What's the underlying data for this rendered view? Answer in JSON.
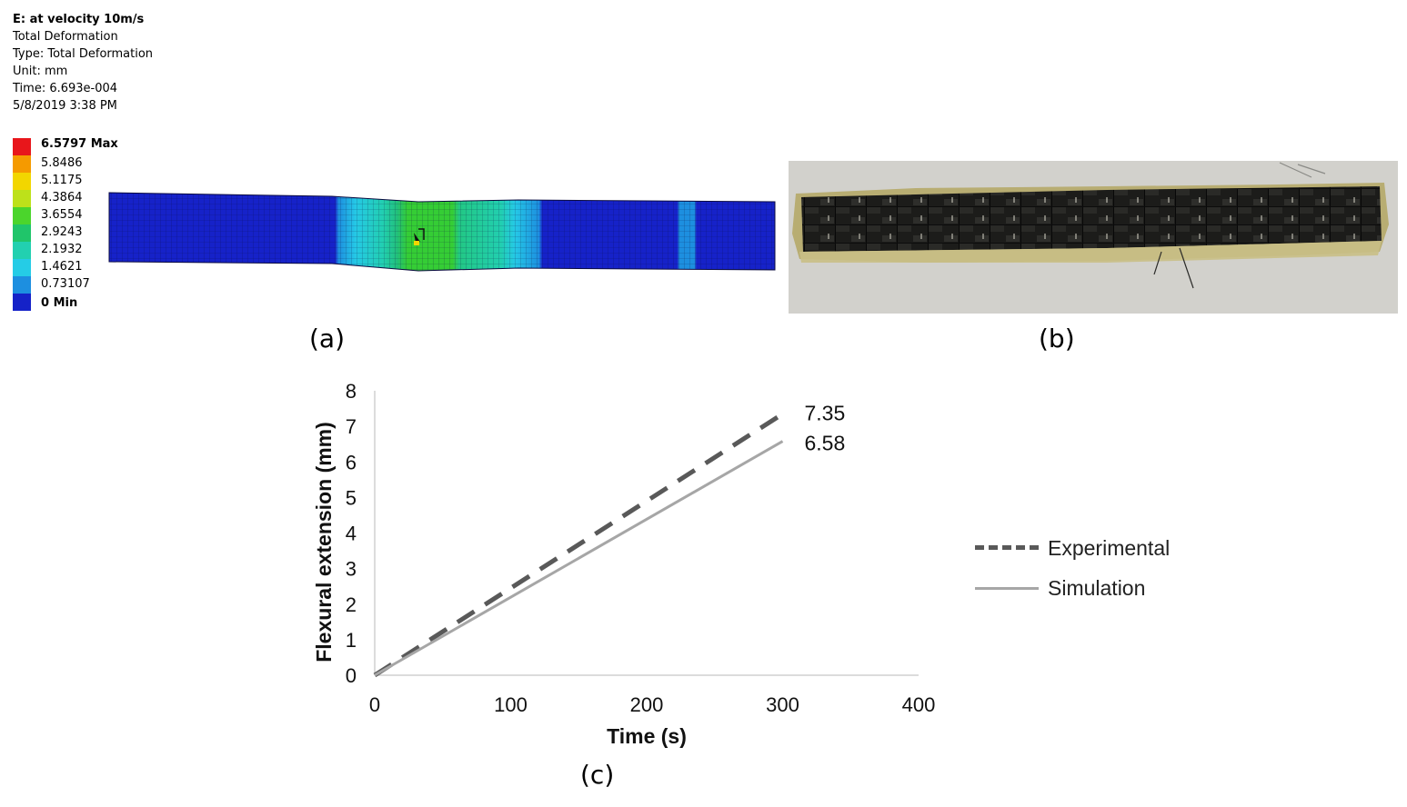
{
  "panel_a": {
    "header": {
      "title": "E: at velocity 10m/s",
      "line2": "Total Deformation",
      "line3": "Type: Total Deformation",
      "line4": "Unit: mm",
      "line5": "Time: 6.693e-004",
      "line6": "5/8/2019 3:38 PM"
    },
    "legend": [
      {
        "label": "6.5797 Max",
        "color": "#e8161b",
        "bold": true
      },
      {
        "label": "5.8486",
        "color": "#f59a00",
        "bold": false
      },
      {
        "label": "5.1175",
        "color": "#f2d600",
        "bold": false
      },
      {
        "label": "4.3864",
        "color": "#bde11a",
        "bold": false
      },
      {
        "label": "3.6554",
        "color": "#4bd52c",
        "bold": false
      },
      {
        "label": "2.9243",
        "color": "#20c56a",
        "bold": false
      },
      {
        "label": "2.1932",
        "color": "#22d0b0",
        "bold": false
      },
      {
        "label": "1.4621",
        "color": "#25cce6",
        "bold": false
      },
      {
        "label": "0.73107",
        "color": "#1d8fe0",
        "bold": false
      },
      {
        "label": "0 Min",
        "color": "#1522c8",
        "bold": true
      }
    ],
    "caption": "(a)"
  },
  "panel_b": {
    "caption": "(b)"
  },
  "panel_c": {
    "caption": "(c)"
  },
  "chart_data": {
    "type": "line",
    "title": "",
    "xlabel": "Time (s)",
    "ylabel": "Flexural extension (mm)",
    "xlim": [
      0,
      400
    ],
    "ylim": [
      0,
      8
    ],
    "xticks": [
      0,
      100,
      200,
      300,
      400
    ],
    "yticks": [
      0,
      1,
      2,
      3,
      4,
      5,
      6,
      7,
      8
    ],
    "grid": false,
    "legend_position": "right",
    "series": [
      {
        "name": "Experimental",
        "x": [
          0,
          300
        ],
        "y": [
          0,
          7.35
        ],
        "style": "dashed",
        "color": "#595959",
        "end_label": "7.35"
      },
      {
        "name": "Simulation",
        "x": [
          0,
          300
        ],
        "y": [
          0,
          6.58
        ],
        "style": "solid",
        "color": "#a6a6a6",
        "end_label": "6.58"
      }
    ]
  }
}
